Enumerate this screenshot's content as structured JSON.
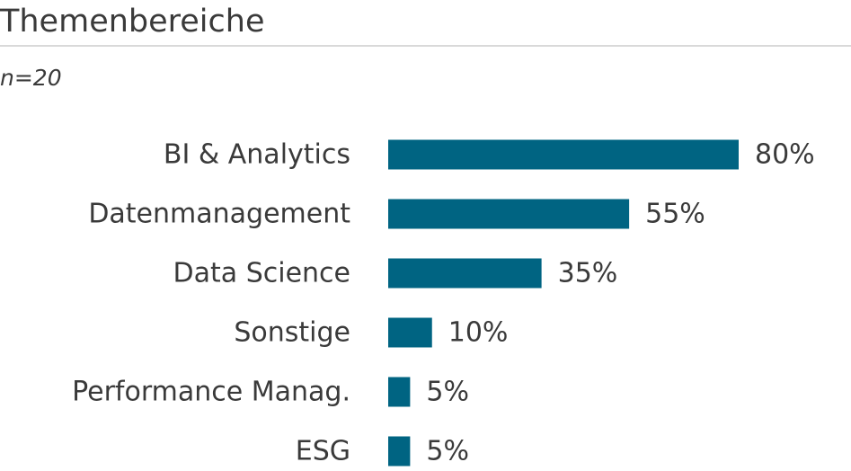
{
  "header": {
    "title": "Themenbereiche",
    "subtitle": "n=20"
  },
  "chart_data": {
    "type": "bar",
    "orientation": "horizontal",
    "categories": [
      "BI & Analytics",
      "Datenmanagement",
      "Data Science",
      "Sonstige",
      "Performance Manag.",
      "ESG"
    ],
    "values": [
      80,
      55,
      35,
      10,
      5,
      5
    ],
    "value_labels": [
      "80%",
      "55%",
      "35%",
      "10%",
      "5%",
      "5%"
    ],
    "title": "Themenbereiche",
    "subtitle": "n=20",
    "xlim": [
      0,
      100
    ],
    "grid": false,
    "bar_color": "#006482"
  }
}
